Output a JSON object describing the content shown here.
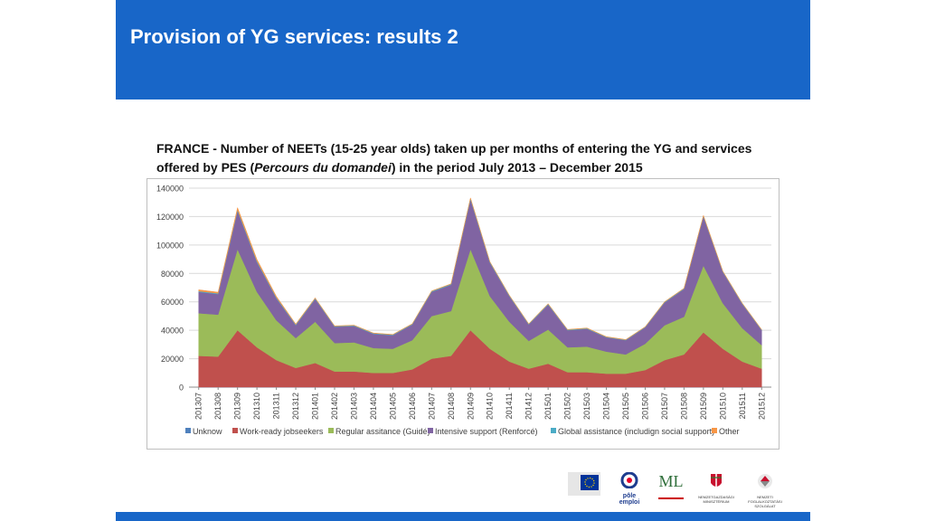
{
  "header": {
    "title": "Provision of YG services: results 2"
  },
  "caption": {
    "part1": "FRANCE - Number of NEETs (15-25 year olds) taken up per months of entering the YG and services offered by PES (",
    "italic": "Percours du domandei",
    "part2": ") in the period July 2013 – December 2015"
  },
  "chart_data": {
    "type": "area",
    "stacked": true,
    "categories": [
      "201307",
      "201308",
      "201309",
      "201310",
      "201311",
      "201312",
      "201401",
      "201402",
      "201403",
      "201404",
      "201405",
      "201406",
      "201407",
      "201408",
      "201409",
      "201410",
      "201411",
      "201412",
      "201501",
      "201502",
      "201503",
      "201504",
      "201505",
      "201506",
      "201507",
      "201508",
      "201509",
      "201510",
      "201511",
      "201512"
    ],
    "ylim": [
      0,
      140000
    ],
    "yticks": [
      0,
      20000,
      40000,
      60000,
      80000,
      100000,
      120000,
      140000
    ],
    "grid": true,
    "legend_position": "bottom",
    "series": [
      {
        "name": "Unknow",
        "color": "#4f81bd",
        "values": [
          0,
          0,
          0,
          0,
          0,
          0,
          0,
          0,
          0,
          0,
          0,
          0,
          0,
          0,
          0,
          0,
          0,
          0,
          0,
          0,
          0,
          0,
          0,
          0,
          0,
          0,
          0,
          0,
          0,
          0
        ]
      },
      {
        "name": "Work-ready jobseekers",
        "color": "#c0504d",
        "values": [
          22000,
          21500,
          40000,
          28000,
          19000,
          13500,
          17000,
          11000,
          11000,
          10000,
          10000,
          12500,
          20000,
          22000,
          40000,
          27000,
          18000,
          13000,
          16500,
          10500,
          10500,
          9500,
          9500,
          12000,
          19000,
          23000,
          38500,
          27000,
          18000,
          13000
        ]
      },
      {
        "name": "Regular assitance (Guidé)",
        "color": "#9bbb59",
        "values": [
          30000,
          29500,
          57000,
          39000,
          28000,
          21000,
          29000,
          20000,
          20500,
          17500,
          17000,
          20500,
          30000,
          31500,
          57000,
          37000,
          28000,
          19500,
          24000,
          17500,
          18000,
          15500,
          13500,
          18500,
          24500,
          26500,
          47000,
          32000,
          23500,
          16500
        ]
      },
      {
        "name": "Intensive support (Renforcé)",
        "color": "#8064a2",
        "values": [
          15000,
          14500,
          27000,
          21000,
          15500,
          9000,
          16000,
          11500,
          11500,
          10000,
          9500,
          11000,
          17000,
          18500,
          35000,
          23500,
          18000,
          11500,
          17500,
          12000,
          12500,
          10000,
          10000,
          11500,
          16000,
          19500,
          34500,
          22000,
          17000,
          10500
        ]
      },
      {
        "name": "Global assistance (includign social support)",
        "color": "#4bacc6",
        "values": [
          500,
          500,
          800,
          700,
          600,
          500,
          500,
          400,
          400,
          400,
          400,
          400,
          500,
          500,
          800,
          600,
          500,
          400,
          500,
          400,
          400,
          300,
          300,
          300,
          400,
          400,
          500,
          400,
          400,
          300
        ]
      },
      {
        "name": "Other",
        "color": "#f79646",
        "values": [
          1000,
          800,
          1500,
          1200,
          800,
          400,
          300,
          200,
          200,
          200,
          200,
          200,
          200,
          200,
          300,
          200,
          200,
          200,
          200,
          200,
          200,
          200,
          200,
          200,
          200,
          200,
          300,
          200,
          200,
          200
        ]
      }
    ]
  },
  "logos": [
    {
      "name": "eu-logo"
    },
    {
      "name": "pole-emploi-logo",
      "label": "pôle emploi"
    },
    {
      "name": "ml-logo",
      "label": "ML"
    },
    {
      "name": "ministry-crest-logo",
      "label": "NEMZETGAZDASÁGI MINISZTÉRIUM"
    },
    {
      "name": "employment-service-logo",
      "label": "NEMZETI FOGLALKOZTATÁSI SZOLGÁLAT"
    }
  ]
}
